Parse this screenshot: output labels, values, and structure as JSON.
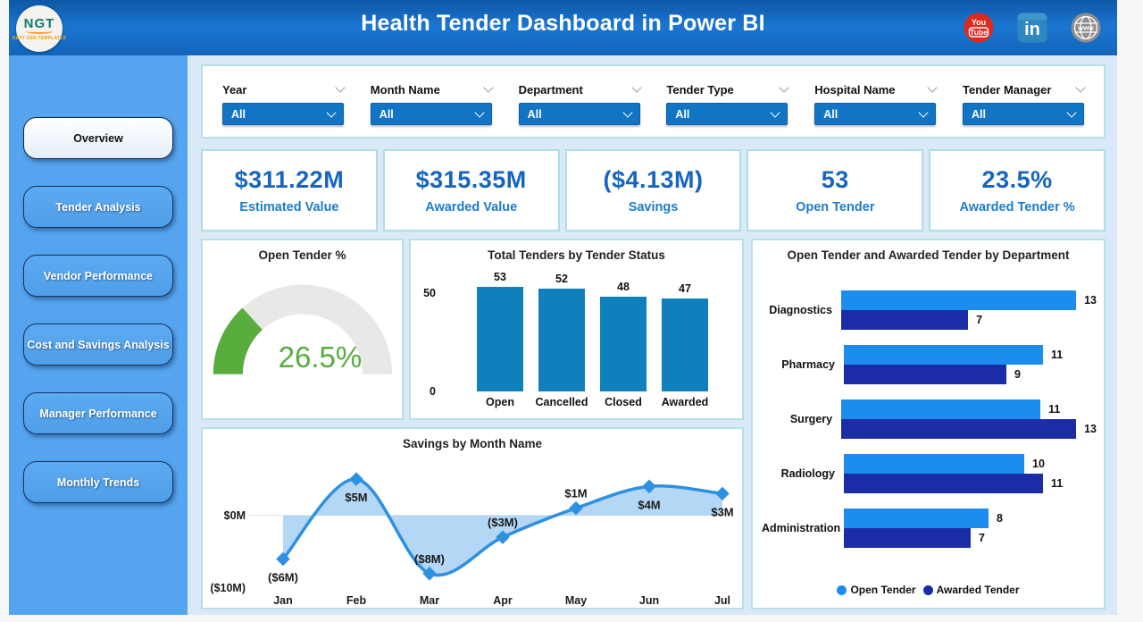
{
  "header": {
    "title": "Health Tender Dashboard in Power BI",
    "logo": {
      "text": "NGT",
      "subtext": "NEXT GEN TEMPLATES"
    },
    "icons": [
      {
        "name": "youtube-icon",
        "line1": "You",
        "line2": "Tube"
      },
      {
        "name": "linkedin-icon",
        "text": "in"
      },
      {
        "name": "website-icon",
        "text": "www"
      }
    ]
  },
  "sidebar": {
    "items": [
      {
        "label": "Overview",
        "active": true
      },
      {
        "label": "Tender Analysis",
        "active": false
      },
      {
        "label": "Vendor Performance",
        "active": false
      },
      {
        "label": "Cost and Savings Analysis",
        "active": false
      },
      {
        "label": "Manager Performance",
        "active": false
      },
      {
        "label": "Monthly Trends",
        "active": false
      }
    ]
  },
  "filters": [
    {
      "label": "Year",
      "value": "All"
    },
    {
      "label": "Month Name",
      "value": "All"
    },
    {
      "label": "Department",
      "value": "All"
    },
    {
      "label": "Tender Type",
      "value": "All"
    },
    {
      "label": "Hospital Name",
      "value": "All"
    },
    {
      "label": "Tender Manager",
      "value": "All"
    }
  ],
  "kpis": [
    {
      "value": "$311.22M",
      "label": "Estimated Value"
    },
    {
      "value": "$315.35M",
      "label": "Awarded Value"
    },
    {
      "value": "($4.13M)",
      "label": "Savings"
    },
    {
      "value": "53",
      "label": "Open Tender"
    },
    {
      "value": "23.5%",
      "label": "Awarded Tender %"
    }
  ],
  "chart_data": [
    {
      "type": "gauge",
      "title": "Open Tender %",
      "value": 26.5,
      "display": "26.5%",
      "min": 0,
      "max": 100,
      "color": "#58ad3d",
      "track_color": "#e8e8e6"
    },
    {
      "type": "bar",
      "title": "Total Tenders by Tender Status",
      "categories": [
        "Open",
        "Cancelled",
        "Closed",
        "Awarded"
      ],
      "values": [
        53,
        52,
        48,
        47
      ],
      "yticks": [
        0,
        50
      ],
      "ylim": [
        0,
        57
      ],
      "bar_color": "#1080bc",
      "grid": false
    },
    {
      "type": "bar-horizontal-grouped",
      "title": "Open Tender and Awarded Tender by Department",
      "categories": [
        "Diagnostics",
        "Pharmacy",
        "Surgery",
        "Radiology",
        "Administration"
      ],
      "series": [
        {
          "name": "Open Tender",
          "color": "#1c8dee",
          "values": [
            13,
            11,
            11,
            10,
            8
          ]
        },
        {
          "name": "Awarded Tender",
          "color": "#1b2da6",
          "values": [
            7,
            9,
            13,
            11,
            7
          ]
        }
      ],
      "xlim": [
        0,
        13
      ],
      "legend_position": "bottom"
    },
    {
      "type": "area",
      "title": "Savings by Month Name",
      "x": [
        "Jan",
        "Feb",
        "Mar",
        "Apr",
        "May",
        "Jun",
        "Jul"
      ],
      "values": [
        -6,
        5,
        -8,
        -3,
        1,
        4,
        3
      ],
      "labels": [
        "($6M)",
        "$5M",
        "($8M)",
        "($3M)",
        "$1M",
        "$4M",
        "$3M"
      ],
      "label_positions": [
        "below",
        "below",
        "above",
        "above",
        "above",
        "below",
        "below"
      ],
      "ylim": [
        -10,
        6
      ],
      "yticks": [
        {
          "value": 0,
          "label": "$0M"
        },
        {
          "value": -10,
          "label": "($10M)"
        }
      ],
      "line_color": "#2e90e0",
      "fill_color": "#abd3f3",
      "marker": "diamond"
    }
  ]
}
